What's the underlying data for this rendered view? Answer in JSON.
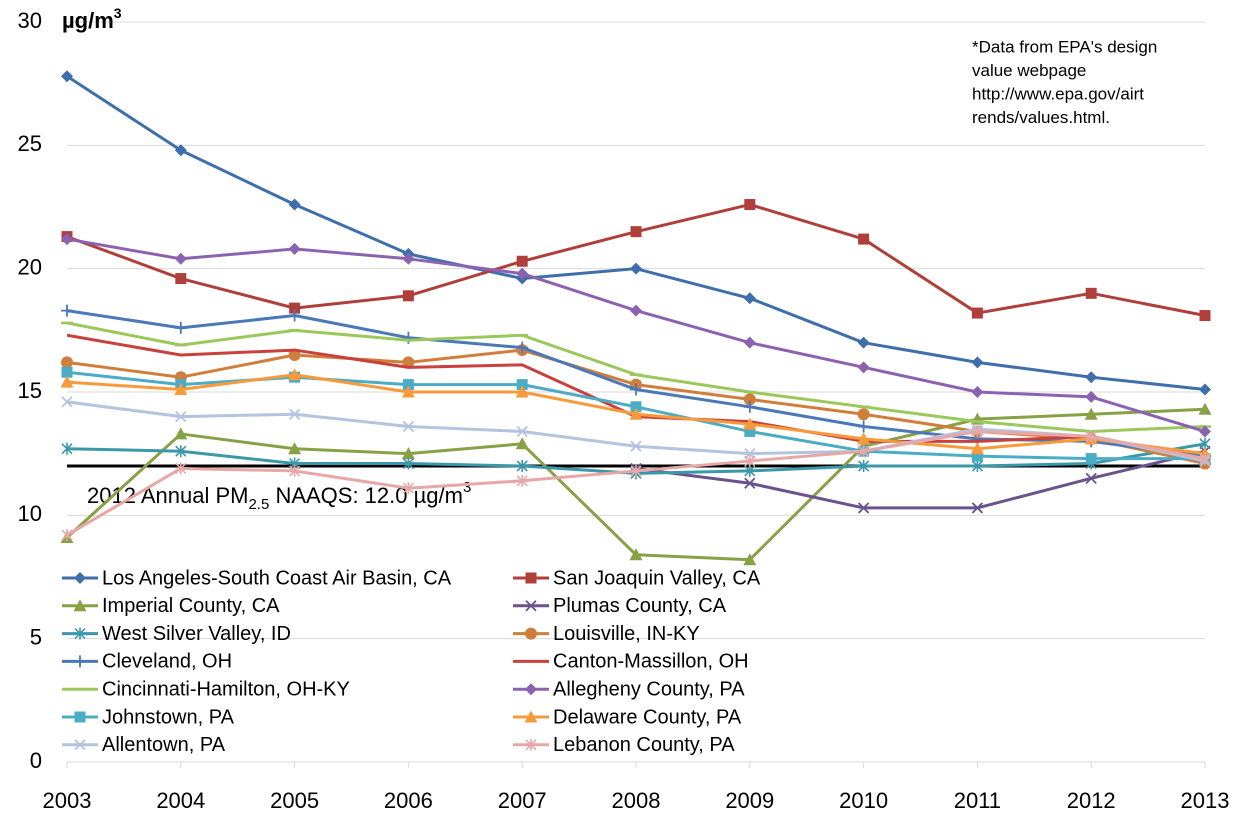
{
  "chart_data": {
    "type": "line",
    "y_unit": {
      "text": "µg/m",
      "sup": "3"
    },
    "annotation": [
      "*Data from EPA's design",
      "value webpage",
      "http://www.epa.gov/airt",
      "rends/values.html."
    ],
    "reference_line": {
      "value": 12.0,
      "label": {
        "pre": "2012 Annual PM",
        "sub": "2.5",
        "post": " NAAQS: 12.0 µg/m",
        "sup": "3"
      },
      "color": "#000000"
    },
    "categories": [
      "2003",
      "2004",
      "2005",
      "2006",
      "2007",
      "2008",
      "2009",
      "2010",
      "2011",
      "2012",
      "2013"
    ],
    "ylim": [
      0,
      30
    ],
    "yticks": [
      0,
      5,
      10,
      15,
      20,
      25,
      30
    ],
    "grid": true,
    "series": [
      {
        "name": "Los Angeles-South Coast Air Basin, CA",
        "color": "#3f6fab",
        "marker": "diamond",
        "values": [
          27.8,
          24.8,
          22.6,
          20.6,
          19.6,
          20.0,
          18.8,
          17.0,
          16.2,
          15.6,
          15.1
        ]
      },
      {
        "name": "San Joaquin Valley, CA",
        "color": "#b03f3b",
        "marker": "square",
        "values": [
          21.3,
          19.6,
          18.4,
          18.9,
          20.3,
          21.5,
          22.6,
          21.2,
          18.2,
          19.0,
          18.1
        ]
      },
      {
        "name": "Imperial County, CA",
        "color": "#88a046",
        "marker": "triangle",
        "values": [
          9.1,
          13.3,
          12.7,
          12.5,
          12.9,
          8.4,
          8.2,
          12.8,
          13.9,
          14.1,
          14.3
        ]
      },
      {
        "name": "Plumas County, CA",
        "color": "#6a528c",
        "marker": "x",
        "values": [
          null,
          null,
          null,
          null,
          null,
          11.9,
          11.3,
          10.3,
          10.3,
          11.5,
          12.6
        ]
      },
      {
        "name": "West Silver Valley, ID",
        "color": "#3b98a9",
        "marker": "star",
        "values": [
          12.7,
          12.6,
          12.1,
          12.1,
          12.0,
          11.7,
          11.8,
          12.0,
          12.0,
          12.1,
          12.9
        ]
      },
      {
        "name": "Louisville, IN-KY",
        "color": "#cf7f3b",
        "marker": "circle",
        "values": [
          16.2,
          15.6,
          16.5,
          16.2,
          16.7,
          15.3,
          14.7,
          14.1,
          13.4,
          13.1,
          12.1
        ]
      },
      {
        "name": "Cleveland, OH",
        "color": "#4a78b8",
        "marker": "plus",
        "values": [
          18.3,
          17.6,
          18.1,
          17.2,
          16.8,
          15.1,
          14.4,
          13.6,
          13.1,
          13.0,
          12.4
        ]
      },
      {
        "name": "Canton-Massillon, OH",
        "color": "#c8413c",
        "marker": "none",
        "values": [
          17.3,
          16.5,
          16.7,
          16.0,
          16.1,
          14.0,
          13.8,
          13.0,
          13.0,
          13.2,
          12.3
        ]
      },
      {
        "name": "Cincinnati-Hamilton, OH-KY",
        "color": "#9bc85a",
        "marker": "dash",
        "values": [
          17.8,
          16.9,
          17.5,
          17.1,
          17.3,
          15.7,
          15.0,
          14.4,
          13.8,
          13.4,
          13.6
        ]
      },
      {
        "name": "Allegheny County, PA",
        "color": "#8b62b0",
        "marker": "diamond",
        "values": [
          21.2,
          20.4,
          20.8,
          20.4,
          19.8,
          18.3,
          17.0,
          16.0,
          15.0,
          14.8,
          13.4
        ]
      },
      {
        "name": "Johnstown, PA",
        "color": "#4bacc6",
        "marker": "square",
        "values": [
          15.8,
          15.3,
          15.6,
          15.3,
          15.3,
          14.4,
          13.4,
          12.6,
          12.4,
          12.3,
          12.3
        ]
      },
      {
        "name": "Delaware County, PA",
        "color": "#f79a3b",
        "marker": "triangle",
        "values": [
          15.4,
          15.1,
          15.7,
          15.0,
          15.0,
          14.1,
          13.7,
          13.1,
          12.7,
          13.1,
          12.5
        ]
      },
      {
        "name": "Allentown, PA",
        "color": "#b4c3e0",
        "marker": "x",
        "values": [
          14.6,
          14.0,
          14.1,
          13.6,
          13.4,
          12.8,
          12.5,
          12.6,
          13.5,
          13.2,
          12.2
        ]
      },
      {
        "name": "Lebanon County, PA",
        "color": "#e8a7a7",
        "marker": "star",
        "values": [
          9.2,
          11.9,
          11.8,
          11.1,
          11.4,
          11.8,
          12.2,
          12.6,
          13.4,
          13.2,
          12.3
        ]
      }
    ]
  }
}
